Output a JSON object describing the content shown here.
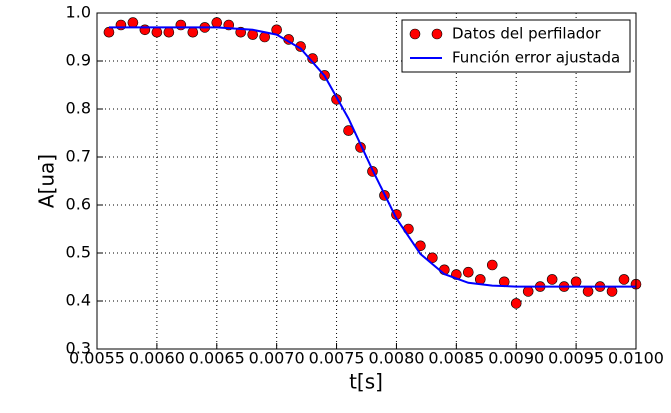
{
  "chart_data": {
    "type": "scatter",
    "xlabel": "t[s]",
    "ylabel": "A[ua]",
    "xlim": [
      0.0055,
      0.01
    ],
    "ylim": [
      0.3,
      1.0
    ],
    "xticks": [
      0.0055,
      {
        "value": 0.006,
        "label": "0.0060"
      },
      0.0065,
      {
        "value": 0.007,
        "label": "0.0070"
      },
      0.0075,
      {
        "value": 0.008,
        "label": "0.0080"
      },
      0.0085,
      {
        "value": 0.009,
        "label": "0.0090"
      },
      0.0095,
      {
        "value": 0.01,
        "label": "0.0100"
      }
    ],
    "yticks": [
      0.3,
      0.4,
      0.5,
      0.6,
      0.7,
      0.8,
      0.9,
      {
        "value": 1.0,
        "label": "1.0"
      }
    ],
    "grid": true,
    "legend": "upper right",
    "series": [
      {
        "name": "Datos del perfilador",
        "color": "#ff0000",
        "type": "scatter",
        "x": [
          0.0056,
          0.0057,
          0.0058,
          0.0059,
          0.006,
          0.0061,
          0.0062,
          0.0063,
          0.0064,
          0.0065,
          0.0066,
          0.0067,
          0.0068,
          0.0069,
          0.007,
          0.0071,
          0.0072,
          0.0073,
          0.0074,
          0.0075,
          0.0076,
          0.0077,
          0.0078,
          0.0079,
          0.008,
          0.0081,
          0.0082,
          0.0083,
          0.0084,
          0.0085,
          0.0086,
          0.0087,
          0.0088,
          0.0089,
          0.009,
          0.0091,
          0.0092,
          0.0093,
          0.0094,
          0.0095,
          0.0096,
          0.0097,
          0.0098,
          0.0099,
          0.01
        ],
        "values": [
          0.96,
          0.975,
          0.98,
          0.965,
          0.96,
          0.96,
          0.975,
          0.96,
          0.97,
          0.98,
          0.975,
          0.96,
          0.955,
          0.95,
          0.965,
          0.945,
          0.93,
          0.905,
          0.87,
          0.82,
          0.755,
          0.72,
          0.67,
          0.62,
          0.58,
          0.55,
          0.515,
          0.49,
          0.465,
          0.455,
          0.46,
          0.445,
          0.475,
          0.44,
          0.395,
          0.42,
          0.43,
          0.445,
          0.43,
          0.44,
          0.42,
          0.43,
          0.42,
          0.445,
          0.435
        ]
      },
      {
        "name": "Función error ajustada",
        "color": "#0000ff",
        "type": "line",
        "x": [
          0.0056,
          0.006,
          0.0065,
          0.0068,
          0.007,
          0.0072,
          0.0074,
          0.0076,
          0.0078,
          0.008,
          0.0082,
          0.0084,
          0.0086,
          0.0088,
          0.009,
          0.0095,
          0.01
        ],
        "values": [
          0.97,
          0.97,
          0.97,
          0.965,
          0.955,
          0.926,
          0.869,
          0.78,
          0.673,
          0.572,
          0.498,
          0.456,
          0.438,
          0.432,
          0.43,
          0.43,
          0.43
        ]
      }
    ]
  }
}
